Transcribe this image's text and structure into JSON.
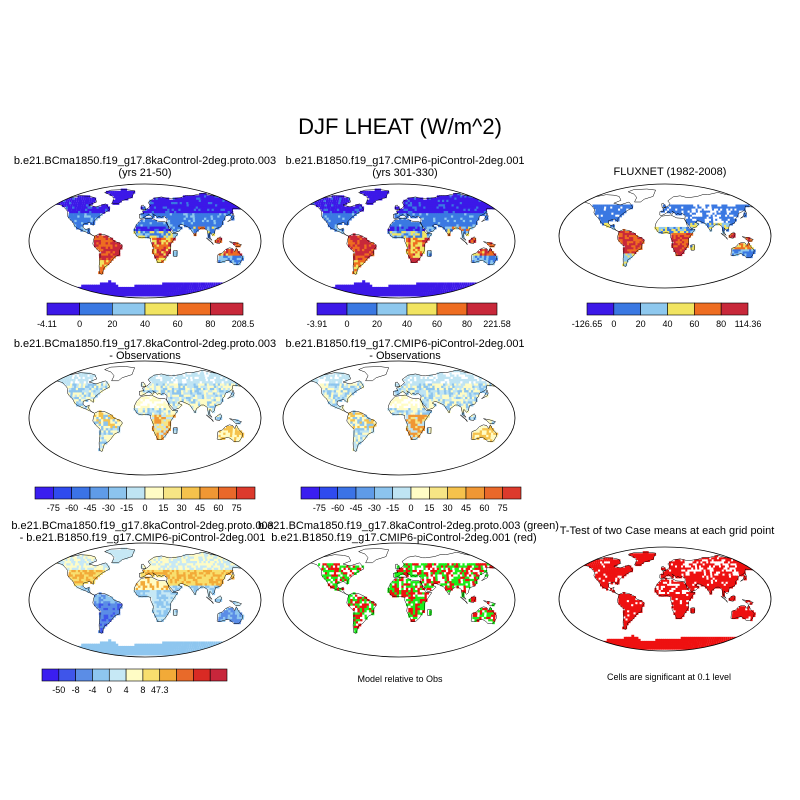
{
  "title": "DJF LHEAT (W/m^2)",
  "colors": {
    "abs": [
      "#3c18e8",
      "#3a78e2",
      "#8ec8ee",
      "#f1e461",
      "#ee6d21",
      "#c8283a"
    ],
    "diff": [
      "#3a1ef0",
      "#2f4bee",
      "#3b73e6",
      "#5f9be8",
      "#8cc4ee",
      "#bfe4f3",
      "#fffcc5",
      "#f7e585",
      "#f5c24c",
      "#f09734",
      "#e9682a",
      "#dc3a2c",
      "#c5263a"
    ],
    "d3": [
      "#3a1ef0",
      "#3f55ea",
      "#5b8de6",
      "#8ec6ef",
      "#c6e8f5",
      "#fffcc5",
      "#f8df6e",
      "#f2aa38",
      "#e86a2a",
      "#d92a24",
      "#c8263b"
    ],
    "green": "#1aee1a",
    "red": "#ee1111"
  },
  "row1": {
    "case1": {
      "title1": "b.e21.BCma1850.f19_g17.8kaControl-2deg.proto.003",
      "title2": "(yrs 21-50)",
      "labels": [
        "-4.11",
        "0",
        "20",
        "40",
        "60",
        "80",
        "208.5"
      ]
    },
    "case2": {
      "title1": "b.e21.B1850.f19_g17.CMIP6-piControl-2deg.001",
      "title2": "(yrs 301-330)",
      "labels": [
        "-3.91",
        "0",
        "20",
        "40",
        "60",
        "80",
        "221.58"
      ]
    },
    "obs": {
      "title1": "FLUXNET (1982-2008)",
      "labels": [
        "-126.65",
        "0",
        "20",
        "40",
        "60",
        "80",
        "114.36"
      ]
    }
  },
  "row2": {
    "diff1": {
      "title1": "b.e21.BCma1850.f19_g17.8kaControl-2deg.proto.003",
      "title2": "- Observations"
    },
    "diff2": {
      "title1": "b.e21.B1850.f19_g17.CMIP6-piControl-2deg.001",
      "title2": "- Observations"
    },
    "labels": [
      "-75",
      "-60",
      "-45",
      "-30",
      "-15",
      "0",
      "15",
      "30",
      "45",
      "60",
      "75"
    ]
  },
  "row3": {
    "diff3": {
      "title1": "b.e21.BCma1850.f19_g17.8kaControl-2deg.proto.003",
      "title2": "- b.e21.B1850.f19_g17.CMIP6-piControl-2deg.001",
      "labels": [
        "-50",
        "-8",
        "-4",
        "0",
        "4",
        "8",
        "47.3"
      ]
    },
    "rel": {
      "title1": "b.e21.BCma1850.f19_g17.8kaControl-2deg.proto.003 (green)",
      "title2": "b.e21.B1850.f19_g17.CMIP6-piControl-2deg.001 (red)",
      "note": "Model relative to Obs"
    },
    "ttest": {
      "title1": "T-Test of two Case means at each grid point",
      "note": "Cells are significant at 0.1 level"
    }
  }
}
